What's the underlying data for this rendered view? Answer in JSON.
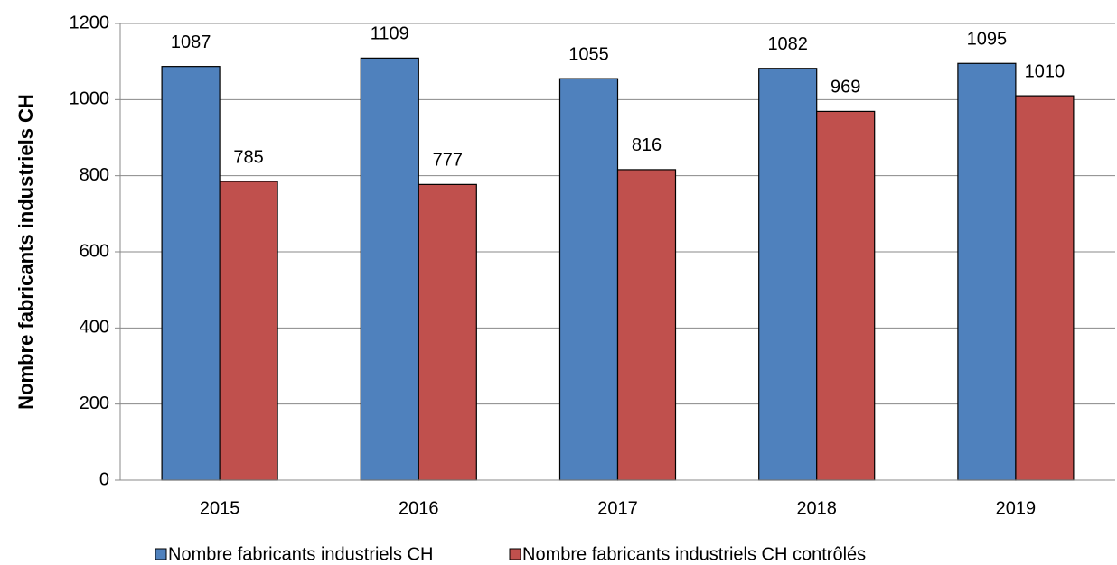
{
  "chart_data": {
    "type": "bar",
    "ylabel": "Nombre fabricants industriels CH",
    "categories": [
      "2015",
      "2016",
      "2017",
      "2018",
      "2019"
    ],
    "series": [
      {
        "name": "Nombre fabricants industriels CH",
        "color": "#4f81bd",
        "values": [
          1087,
          1109,
          1055,
          1082,
          1095
        ]
      },
      {
        "name": "Nombre fabricants industriels CH contrôlés",
        "color": "#c0504d",
        "values": [
          785,
          777,
          816,
          969,
          1010
        ]
      }
    ],
    "ylim": [
      0,
      1200
    ],
    "yticks": [
      0,
      200,
      400,
      600,
      800,
      1000,
      1200
    ],
    "grid": true,
    "legend": "bottom"
  }
}
